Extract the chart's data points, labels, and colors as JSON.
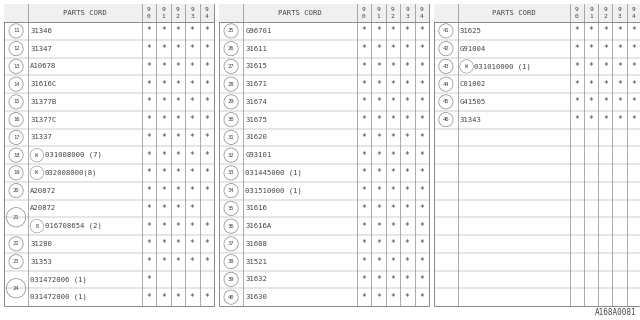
{
  "bg_color": "#ffffff",
  "line_color": "#888888",
  "text_color": "#444444",
  "font_size": 5.2,
  "title": "A168A0081",
  "year_cols": [
    "9\n0",
    "9\n1",
    "9\n2",
    "9\n3",
    "9\n4"
  ],
  "tables": [
    {
      "rows": [
        {
          "num": "11",
          "part": "31346",
          "prefix": "",
          "stars": [
            1,
            1,
            1,
            1,
            1
          ],
          "group": 0
        },
        {
          "num": "12",
          "part": "31347",
          "prefix": "",
          "stars": [
            1,
            1,
            1,
            1,
            1
          ],
          "group": 0
        },
        {
          "num": "13",
          "part": "A10678",
          "prefix": "",
          "stars": [
            1,
            1,
            1,
            1,
            1
          ],
          "group": 0
        },
        {
          "num": "14",
          "part": "31616C",
          "prefix": "",
          "stars": [
            1,
            1,
            1,
            1,
            1
          ],
          "group": 0
        },
        {
          "num": "15",
          "part": "31377B",
          "prefix": "",
          "stars": [
            1,
            1,
            1,
            1,
            1
          ],
          "group": 0
        },
        {
          "num": "16",
          "part": "31377C",
          "prefix": "",
          "stars": [
            1,
            1,
            1,
            1,
            1
          ],
          "group": 0
        },
        {
          "num": "17",
          "part": "31337",
          "prefix": "",
          "stars": [
            1,
            1,
            1,
            1,
            1
          ],
          "group": 0
        },
        {
          "num": "18",
          "part": "031008000 (7)",
          "prefix": "W",
          "stars": [
            1,
            1,
            1,
            1,
            1
          ],
          "group": 0
        },
        {
          "num": "19",
          "part": "032008000(8)",
          "prefix": "W",
          "stars": [
            1,
            1,
            1,
            1,
            1
          ],
          "group": 0
        },
        {
          "num": "20",
          "part": "A20872",
          "prefix": "",
          "stars": [
            1,
            1,
            1,
            1,
            1
          ],
          "group": 0
        },
        {
          "num": "21",
          "part": "A20872",
          "prefix": "",
          "stars": [
            1,
            1,
            1,
            1,
            0
          ],
          "group": 21
        },
        {
          "num": "21",
          "part": "016708654 (2)",
          "prefix": "B",
          "stars": [
            1,
            1,
            1,
            1,
            1
          ],
          "group": 21
        },
        {
          "num": "22",
          "part": "31280",
          "prefix": "",
          "stars": [
            1,
            1,
            1,
            1,
            1
          ],
          "group": 0
        },
        {
          "num": "23",
          "part": "31353",
          "prefix": "",
          "stars": [
            1,
            1,
            1,
            1,
            1
          ],
          "group": 0
        },
        {
          "num": "24",
          "part": "031472006 (1)",
          "prefix": "",
          "stars": [
            1,
            0,
            0,
            0,
            0
          ],
          "group": 24
        },
        {
          "num": "24",
          "part": "031472000 (1)",
          "prefix": "",
          "stars": [
            1,
            1,
            1,
            1,
            1
          ],
          "group": 24
        }
      ]
    },
    {
      "rows": [
        {
          "num": "25",
          "part": "G96701",
          "prefix": "",
          "stars": [
            1,
            1,
            1,
            1,
            1
          ],
          "group": 0
        },
        {
          "num": "26",
          "part": "31611",
          "prefix": "",
          "stars": [
            1,
            1,
            1,
            1,
            1
          ],
          "group": 0
        },
        {
          "num": "27",
          "part": "31615",
          "prefix": "",
          "stars": [
            1,
            1,
            1,
            1,
            1
          ],
          "group": 0
        },
        {
          "num": "28",
          "part": "31671",
          "prefix": "",
          "stars": [
            1,
            1,
            1,
            1,
            1
          ],
          "group": 0
        },
        {
          "num": "29",
          "part": "31674",
          "prefix": "",
          "stars": [
            1,
            1,
            1,
            1,
            1
          ],
          "group": 0
        },
        {
          "num": "30",
          "part": "31675",
          "prefix": "",
          "stars": [
            1,
            1,
            1,
            1,
            1
          ],
          "group": 0
        },
        {
          "num": "31",
          "part": "31620",
          "prefix": "",
          "stars": [
            1,
            1,
            1,
            1,
            1
          ],
          "group": 0
        },
        {
          "num": "32",
          "part": "G93101",
          "prefix": "",
          "stars": [
            1,
            1,
            1,
            1,
            1
          ],
          "group": 0
        },
        {
          "num": "33",
          "part": "031445000 (1)",
          "prefix": "",
          "stars": [
            1,
            1,
            1,
            1,
            1
          ],
          "group": 0
        },
        {
          "num": "34",
          "part": "031510000 (1)",
          "prefix": "",
          "stars": [
            1,
            1,
            1,
            1,
            1
          ],
          "group": 0
        },
        {
          "num": "35",
          "part": "31616",
          "prefix": "",
          "stars": [
            1,
            1,
            1,
            1,
            1
          ],
          "group": 0
        },
        {
          "num": "36",
          "part": "31616A",
          "prefix": "",
          "stars": [
            1,
            1,
            1,
            1,
            1
          ],
          "group": 0
        },
        {
          "num": "37",
          "part": "31608",
          "prefix": "",
          "stars": [
            1,
            1,
            1,
            1,
            1
          ],
          "group": 0
        },
        {
          "num": "38",
          "part": "31521",
          "prefix": "",
          "stars": [
            1,
            1,
            1,
            1,
            1
          ],
          "group": 0
        },
        {
          "num": "39",
          "part": "31632",
          "prefix": "",
          "stars": [
            1,
            1,
            1,
            1,
            1
          ],
          "group": 0
        },
        {
          "num": "40",
          "part": "31630",
          "prefix": "",
          "stars": [
            1,
            1,
            1,
            1,
            1
          ],
          "group": 0
        }
      ]
    },
    {
      "rows": [
        {
          "num": "41",
          "part": "31625",
          "prefix": "",
          "stars": [
            1,
            1,
            1,
            1,
            1
          ],
          "group": 0
        },
        {
          "num": "42",
          "part": "G91004",
          "prefix": "",
          "stars": [
            1,
            1,
            1,
            1,
            1
          ],
          "group": 0
        },
        {
          "num": "43",
          "part": "031010000 (1)",
          "prefix": "W",
          "stars": [
            1,
            1,
            1,
            1,
            1
          ],
          "group": 0
        },
        {
          "num": "44",
          "part": "C01002",
          "prefix": "",
          "stars": [
            1,
            1,
            1,
            1,
            1
          ],
          "group": 0
        },
        {
          "num": "45",
          "part": "G41505",
          "prefix": "",
          "stars": [
            1,
            1,
            1,
            1,
            1
          ],
          "group": 0
        },
        {
          "num": "46",
          "part": "31343",
          "prefix": "",
          "stars": [
            1,
            1,
            1,
            1,
            1
          ],
          "group": 0
        }
      ]
    }
  ]
}
